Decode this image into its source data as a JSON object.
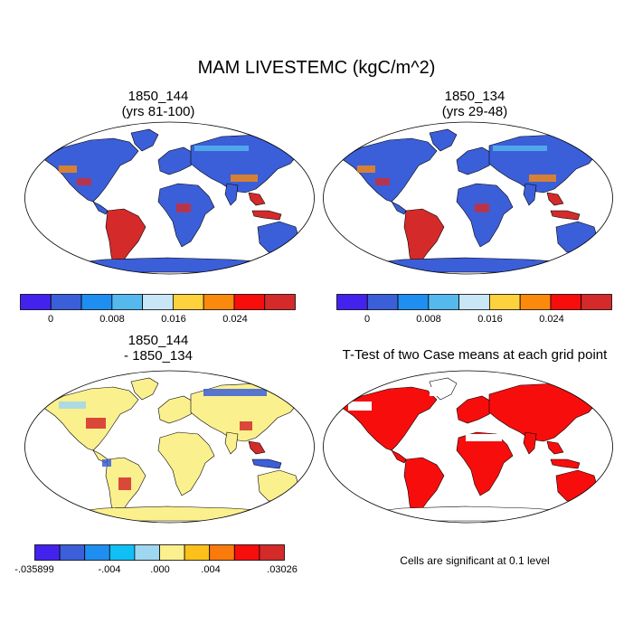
{
  "title": "MAM LIVESTEMC (kgC/m^2)",
  "panels": [
    {
      "title_line1": "1850_144",
      "title_line2": "(yrs 81-100)"
    },
    {
      "title_line1": "1850_134",
      "title_line2": "(yrs 29-48)"
    },
    {
      "title_line1": "1850_144",
      "title_line2": "- 1850_134"
    },
    {
      "title_line1": "T-Test of two Case means at each grid point",
      "title_line2": ""
    }
  ],
  "colorbars": {
    "absolute": {
      "colors": [
        "#4422ee",
        "#3b5fd9",
        "#1e8ff0",
        "#55b9ee",
        "#c8e6f5",
        "#fdd23c",
        "#fb8a0c",
        "#f80d0d",
        "#d42a2a"
      ],
      "labels": [
        "0",
        "0.008",
        "0.016",
        "0.024"
      ]
    },
    "difference": {
      "colors": [
        "#4422ee",
        "#3b5fd9",
        "#1e8ff0",
        "#10c0f5",
        "#9fd6f0",
        "#fbf08e",
        "#fbc01a",
        "#fb7a0c",
        "#f80d0d",
        "#d42a2a"
      ],
      "labels": [
        "-.035899",
        "-.004",
        ".000",
        ".004",
        ".03026"
      ]
    }
  },
  "map_fills": {
    "absolute": {
      "ocean": "#ffffff",
      "land": "#3b5fd9",
      "hot": "#d42a2a",
      "warm": "#fb8a0c",
      "cool": "#55b9ee"
    },
    "difference": {
      "ocean": "#ffffff",
      "land": "#fbf08e",
      "pos": "#d42a2a",
      "neg": "#3b5fd9",
      "slight": "#9fd6f0"
    },
    "ttest": {
      "ocean": "#ffffff",
      "land": "#f80d0d",
      "blank": "#ffffff"
    }
  },
  "footnote": "Cells are significant at 0.1 level"
}
